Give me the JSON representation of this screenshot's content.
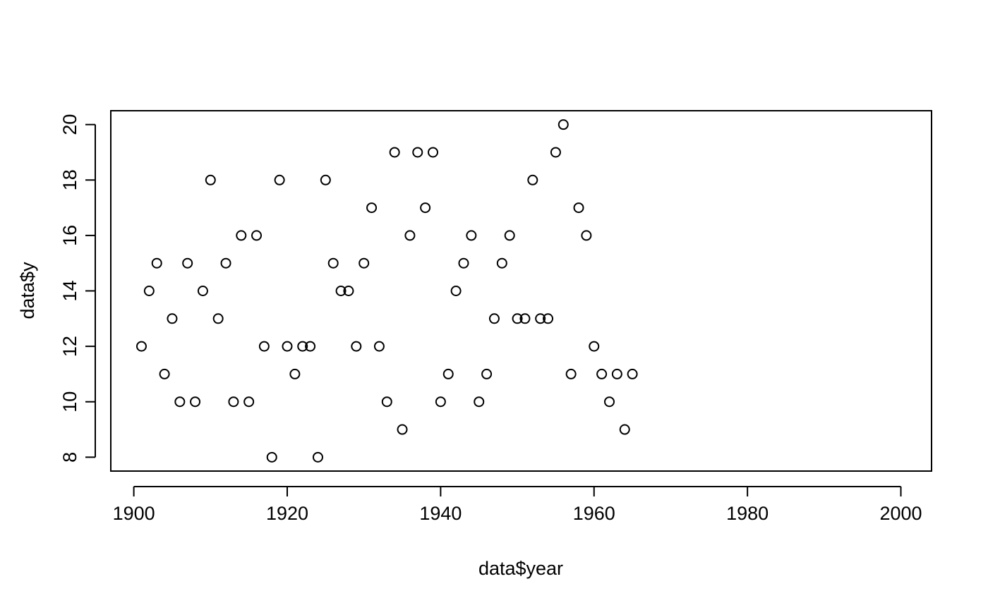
{
  "chart_data": {
    "type": "scatter",
    "title": "",
    "xlabel": "data$year",
    "ylabel": "data$y",
    "xlim": [
      1897,
      2004
    ],
    "ylim": [
      7.5,
      20.5
    ],
    "xticks": [
      1900,
      1920,
      1940,
      1960,
      1980,
      2000
    ],
    "yticks": [
      8,
      10,
      12,
      14,
      16,
      18,
      20
    ],
    "grid": false,
    "legend": "none",
    "marker": "open-circle",
    "points": [
      {
        "x": 1901,
        "y": 12
      },
      {
        "x": 1902,
        "y": 14
      },
      {
        "x": 1903,
        "y": 15
      },
      {
        "x": 1904,
        "y": 11
      },
      {
        "x": 1905,
        "y": 13
      },
      {
        "x": 1906,
        "y": 10
      },
      {
        "x": 1907,
        "y": 15
      },
      {
        "x": 1908,
        "y": 10
      },
      {
        "x": 1909,
        "y": 14
      },
      {
        "x": 1910,
        "y": 18
      },
      {
        "x": 1911,
        "y": 13
      },
      {
        "x": 1912,
        "y": 15
      },
      {
        "x": 1913,
        "y": 10
      },
      {
        "x": 1914,
        "y": 16
      },
      {
        "x": 1915,
        "y": 10
      },
      {
        "x": 1916,
        "y": 16
      },
      {
        "x": 1917,
        "y": 12
      },
      {
        "x": 1918,
        "y": 8
      },
      {
        "x": 1919,
        "y": 18
      },
      {
        "x": 1920,
        "y": 12
      },
      {
        "x": 1921,
        "y": 11
      },
      {
        "x": 1922,
        "y": 12
      },
      {
        "x": 1923,
        "y": 12
      },
      {
        "x": 1924,
        "y": 8
      },
      {
        "x": 1925,
        "y": 18
      },
      {
        "x": 1926,
        "y": 15
      },
      {
        "x": 1927,
        "y": 14
      },
      {
        "x": 1928,
        "y": 14
      },
      {
        "x": 1929,
        "y": 12
      },
      {
        "x": 1930,
        "y": 15
      },
      {
        "x": 1931,
        "y": 17
      },
      {
        "x": 1932,
        "y": 12
      },
      {
        "x": 1933,
        "y": 10
      },
      {
        "x": 1934,
        "y": 19
      },
      {
        "x": 1935,
        "y": 9
      },
      {
        "x": 1936,
        "y": 16
      },
      {
        "x": 1937,
        "y": 19
      },
      {
        "x": 1938,
        "y": 17
      },
      {
        "x": 1939,
        "y": 19
      },
      {
        "x": 1940,
        "y": 10
      },
      {
        "x": 1941,
        "y": 11
      },
      {
        "x": 1942,
        "y": 14
      },
      {
        "x": 1943,
        "y": 15
      },
      {
        "x": 1944,
        "y": 16
      },
      {
        "x": 1945,
        "y": 10
      },
      {
        "x": 1946,
        "y": 11
      },
      {
        "x": 1947,
        "y": 13
      },
      {
        "x": 1948,
        "y": 15
      },
      {
        "x": 1949,
        "y": 16
      },
      {
        "x": 1950,
        "y": 13
      },
      {
        "x": 1951,
        "y": 13
      },
      {
        "x": 1952,
        "y": 18
      },
      {
        "x": 1953,
        "y": 13
      },
      {
        "x": 1954,
        "y": 13
      },
      {
        "x": 1955,
        "y": 19
      },
      {
        "x": 1956,
        "y": 20
      },
      {
        "x": 1957,
        "y": 11
      },
      {
        "x": 1958,
        "y": 17
      },
      {
        "x": 1959,
        "y": 16
      },
      {
        "x": 1960,
        "y": 12
      },
      {
        "x": 1961,
        "y": 11
      },
      {
        "x": 1962,
        "y": 10
      },
      {
        "x": 1963,
        "y": 11
      },
      {
        "x": 1964,
        "y": 9
      },
      {
        "x": 1965,
        "y": 11
      }
    ]
  }
}
